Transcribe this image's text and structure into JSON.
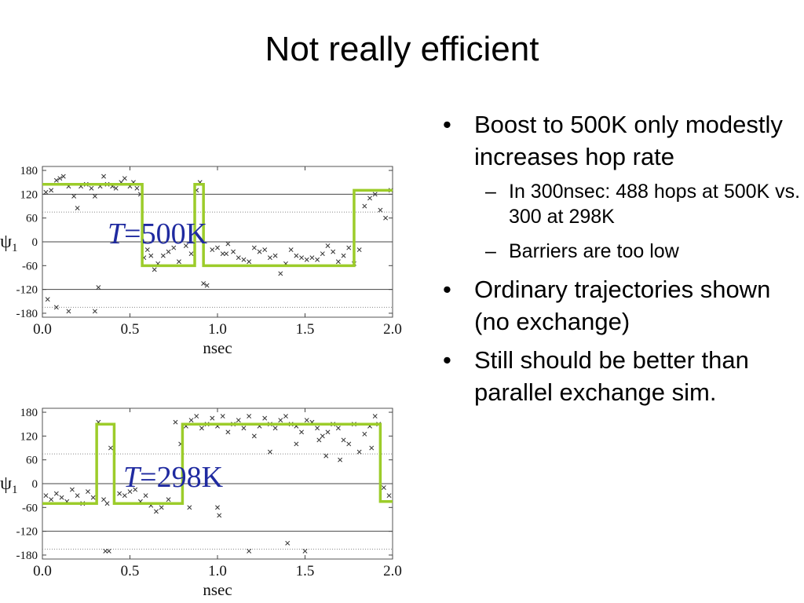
{
  "slide": {
    "title": "Not really efficient",
    "bullets": [
      {
        "text": "Boost to 500K only modestly increases hop rate",
        "subs": [
          "In 300nsec: 488 hops at 500K vs. 300 at 298K",
          "Barriers are too low"
        ]
      },
      {
        "text": "Ordinary trajectories shown (no exchange)",
        "subs": []
      },
      {
        "text": "Still should be better than parallel exchange sim.",
        "subs": []
      }
    ]
  },
  "colors": {
    "step_line": "#9ccc2a",
    "label_text": "#1f2aa0",
    "markers": "#333333"
  },
  "chart_data": [
    {
      "type": "scatter",
      "title": "",
      "annotation": {
        "var": "T",
        "rest": "=500K"
      },
      "xlabel": "nsec",
      "ylabel": "ψ",
      "ylabel_sub": "1",
      "xlim": [
        0.0,
        2.0
      ],
      "ylim": [
        -190,
        190
      ],
      "xticks": [
        "0.0",
        "0.5",
        "1.0",
        "1.5",
        "2.0"
      ],
      "yticks": [
        "180",
        "120",
        "60",
        "0",
        "-60",
        "-120",
        "-180"
      ],
      "grid_solid": [
        0,
        120,
        -120
      ],
      "grid_dotted": [
        75,
        -165
      ],
      "state_line": {
        "x": [
          0.0,
          0.57,
          0.57,
          0.87,
          0.87,
          0.92,
          0.92,
          1.78,
          1.78,
          2.0
        ],
        "y": [
          145,
          145,
          -60,
          -60,
          145,
          145,
          -60,
          -60,
          130,
          130
        ]
      },
      "points": {
        "x": [
          0.02,
          0.05,
          0.08,
          0.1,
          0.12,
          0.15,
          0.18,
          0.2,
          0.22,
          0.25,
          0.28,
          0.3,
          0.33,
          0.35,
          0.37,
          0.4,
          0.42,
          0.45,
          0.47,
          0.5,
          0.52,
          0.54,
          0.56,
          0.58,
          0.6,
          0.62,
          0.64,
          0.66,
          0.69,
          0.72,
          0.75,
          0.78,
          0.82,
          0.85,
          0.88,
          0.9,
          0.92,
          0.94,
          0.97,
          1.0,
          1.03,
          1.06,
          1.09,
          1.12,
          1.15,
          1.18,
          1.21,
          1.24,
          1.27,
          1.3,
          1.33,
          1.36,
          1.39,
          1.42,
          1.45,
          1.48,
          1.51,
          1.54,
          1.57,
          1.6,
          1.63,
          1.66,
          1.69,
          1.72,
          1.75,
          1.78,
          1.81,
          1.84,
          1.87,
          1.9,
          1.93,
          1.96,
          1.99,
          0.03,
          0.08,
          0.15,
          0.3,
          0.32,
          1.05
        ],
        "y": [
          125,
          130,
          155,
          160,
          165,
          140,
          115,
          85,
          140,
          145,
          135,
          115,
          140,
          165,
          145,
          140,
          135,
          150,
          160,
          140,
          150,
          135,
          120,
          -40,
          -20,
          -35,
          -70,
          -55,
          -35,
          -25,
          -15,
          -50,
          -10,
          -30,
          130,
          150,
          -105,
          -110,
          -20,
          -15,
          -30,
          -5,
          -25,
          -40,
          -45,
          -50,
          -15,
          -25,
          -20,
          -40,
          -35,
          -80,
          -55,
          -20,
          -35,
          -40,
          -45,
          -40,
          -45,
          -30,
          -10,
          -25,
          -50,
          -35,
          -15,
          -55,
          -20,
          90,
          110,
          120,
          80,
          60,
          130,
          -145,
          -165,
          -175,
          -175,
          -115,
          -30
        ]
      }
    },
    {
      "type": "scatter",
      "title": "",
      "annotation": {
        "var": "T",
        "rest": "=298K"
      },
      "xlabel": "nsec",
      "ylabel": "ψ",
      "ylabel_sub": "1",
      "xlim": [
        0.0,
        2.0
      ],
      "ylim": [
        -190,
        190
      ],
      "xticks": [
        "0.0",
        "0.5",
        "1.0",
        "1.5",
        "2.0"
      ],
      "yticks": [
        "180",
        "120",
        "60",
        "0",
        "-60",
        "-120",
        "-180"
      ],
      "grid_solid": [
        0,
        -120
      ],
      "grid_dotted": [
        75,
        -165
      ],
      "state_line": {
        "x": [
          0.0,
          0.31,
          0.31,
          0.41,
          0.41,
          0.8,
          0.8,
          1.93,
          1.93,
          2.0
        ],
        "y": [
          -50,
          -50,
          150,
          150,
          -50,
          -50,
          150,
          150,
          -45,
          -45
        ]
      },
      "points": {
        "x": [
          0.02,
          0.05,
          0.08,
          0.11,
          0.14,
          0.17,
          0.2,
          0.23,
          0.26,
          0.29,
          0.32,
          0.35,
          0.37,
          0.39,
          0.44,
          0.47,
          0.5,
          0.53,
          0.56,
          0.59,
          0.62,
          0.65,
          0.68,
          0.72,
          0.76,
          0.79,
          0.82,
          0.85,
          0.88,
          0.91,
          0.94,
          0.97,
          1.0,
          1.03,
          1.06,
          1.09,
          1.12,
          1.15,
          1.18,
          1.21,
          1.24,
          1.27,
          1.3,
          1.33,
          1.36,
          1.39,
          1.42,
          1.45,
          1.48,
          1.51,
          1.54,
          1.57,
          1.6,
          1.63,
          1.66,
          1.69,
          1.72,
          1.75,
          1.78,
          1.81,
          1.84,
          1.87,
          1.9,
          1.92,
          1.95,
          1.98,
          0.36,
          0.38,
          0.84,
          1.0,
          1.01,
          1.18,
          1.4,
          1.5,
          1.3,
          1.45,
          1.58,
          1.62,
          1.7,
          1.88
        ],
        "y": [
          -30,
          -40,
          -25,
          -35,
          -45,
          -15,
          -30,
          -50,
          -20,
          -35,
          155,
          -40,
          -50,
          90,
          -25,
          -30,
          -20,
          -15,
          -45,
          -30,
          -55,
          -70,
          -60,
          -40,
          155,
          100,
          145,
          160,
          170,
          140,
          150,
          165,
          145,
          170,
          130,
          150,
          160,
          140,
          170,
          120,
          145,
          165,
          150,
          140,
          160,
          170,
          150,
          145,
          130,
          160,
          155,
          140,
          120,
          130,
          150,
          140,
          110,
          100,
          150,
          80,
          125,
          145,
          170,
          150,
          -10,
          -30,
          -170,
          -170,
          -60,
          -60,
          -80,
          -170,
          -150,
          -170,
          80,
          100,
          110,
          70,
          60,
          90
        ]
      }
    }
  ]
}
